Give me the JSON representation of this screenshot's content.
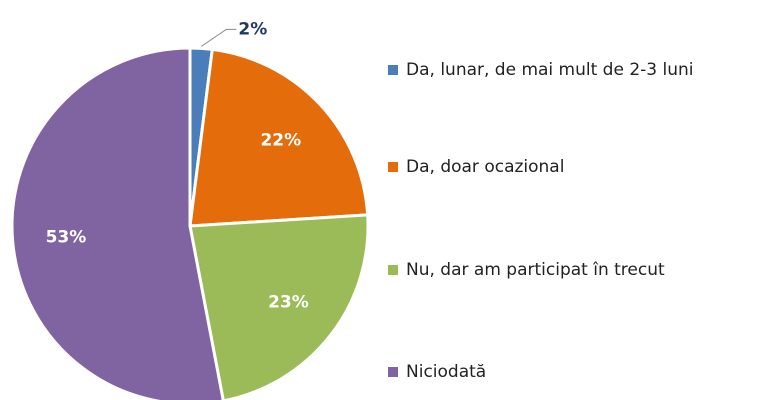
{
  "chart_data": {
    "type": "pie",
    "categories": [
      "Da, lunar, de mai mult de 2-3 luni",
      "Da, doar ocazional",
      "Nu, dar am participat în trecut",
      "Niciodată"
    ],
    "values": [
      2,
      22,
      23,
      53
    ],
    "value_labels": [
      "2%",
      "22%",
      "23%",
      "53%"
    ],
    "colors": [
      "#4a7ebb",
      "#e46c0a",
      "#9bbb59",
      "#8064a2"
    ],
    "legend": "right"
  }
}
